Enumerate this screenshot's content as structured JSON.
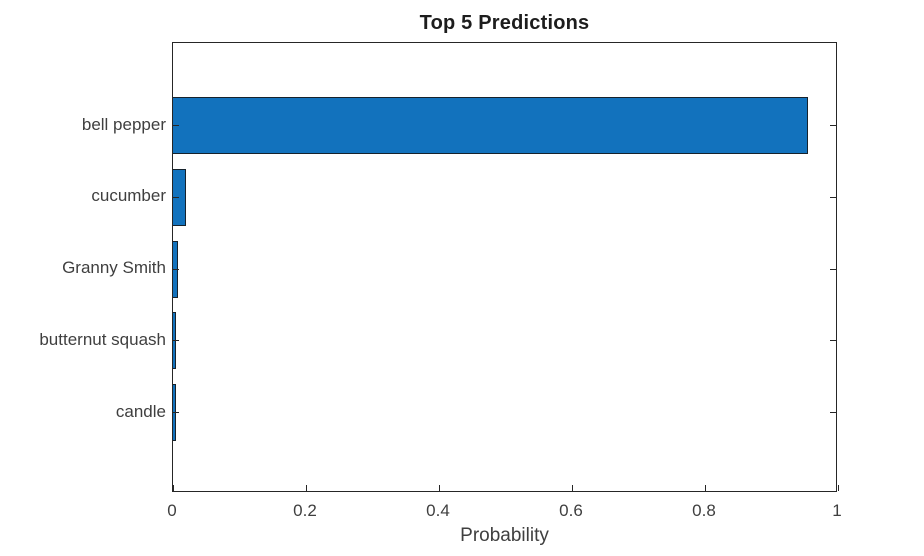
{
  "figure": {
    "title": "Top 5 Predictions",
    "background": "#ffffff"
  },
  "chart_data": {
    "type": "bar",
    "orientation": "horizontal",
    "title": "Top 5 Predictions",
    "categories": [
      "bell pepper",
      "cucumber",
      "Granny Smith",
      "butternut squash",
      "candle"
    ],
    "values": [
      0.955,
      0.02,
      0.008,
      0.005,
      0.004
    ],
    "xlabel": "Probability",
    "ylabel": "",
    "xlim": [
      0,
      1
    ],
    "xticks": [
      0,
      0.2,
      0.4,
      0.6,
      0.8,
      1
    ],
    "xtick_labels": [
      "0",
      "0.2",
      "0.4",
      "0.6",
      "0.8",
      "1"
    ],
    "grid": false,
    "legend": null,
    "colors": {
      "bar_fill": "#1272bd",
      "bar_edge": "#16222c",
      "axis": "#262626",
      "tick_label": "#3f3f3f",
      "title": "#1d1d1d"
    }
  }
}
